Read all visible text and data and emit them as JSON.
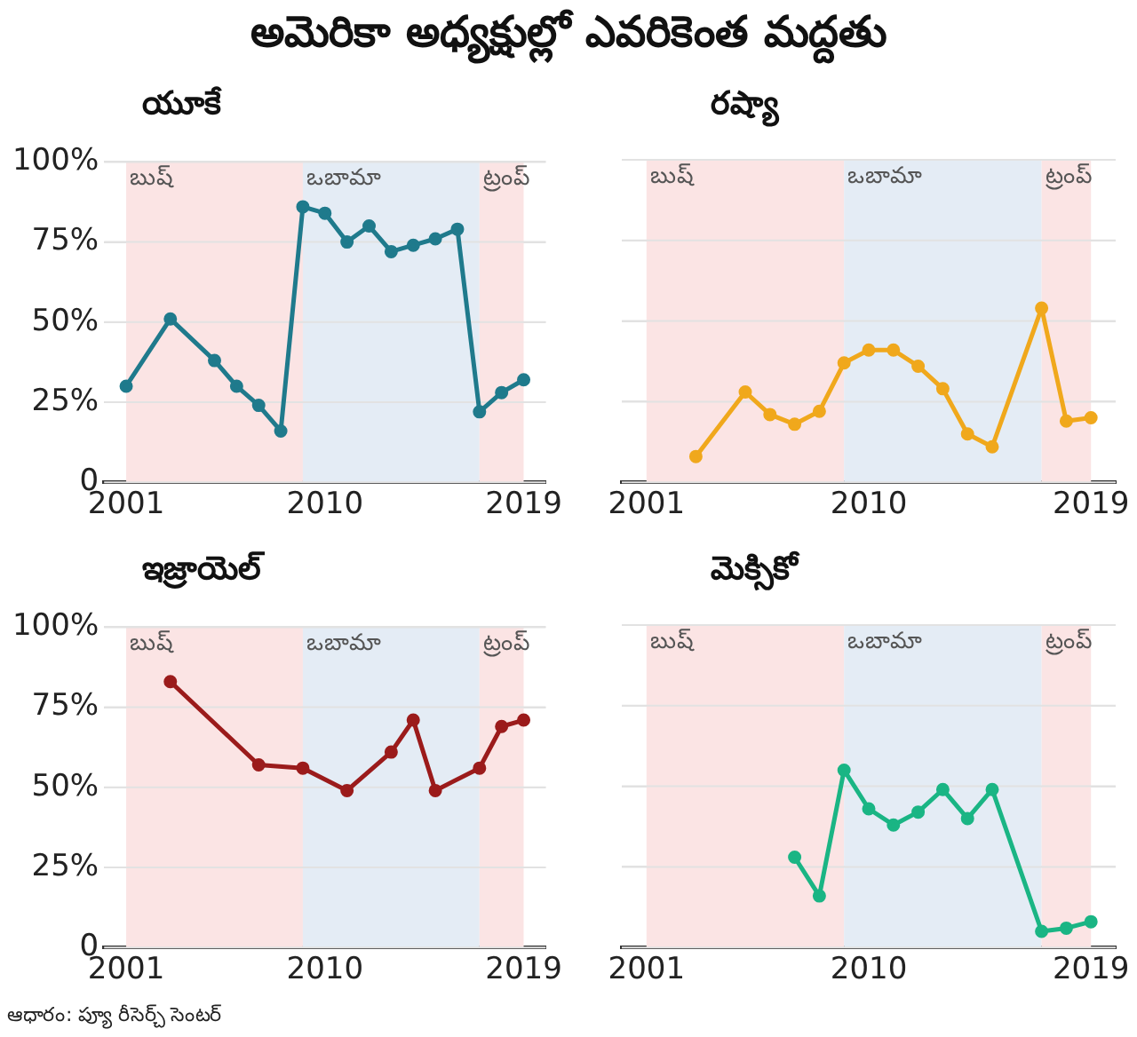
{
  "chart_data": [
    {
      "type": "line",
      "title": "అమెరికా అధ్యక్షుల్లో ఎవరికెంత మద్దతు",
      "subtitle": "యూకే",
      "x": [
        2001,
        2003,
        2005,
        2006,
        2007,
        2008,
        2009,
        2010,
        2011,
        2012,
        2013,
        2014,
        2015,
        2016,
        2017,
        2018,
        2019
      ],
      "series": [
        {
          "color": "#1f7a8c",
          "values": [
            30,
            51,
            38,
            30,
            24,
            16,
            86,
            84,
            75,
            80,
            72,
            74,
            76,
            79,
            22,
            28,
            32
          ]
        }
      ],
      "xlim": [
        2000,
        2020
      ],
      "xticks": [
        2001,
        2010,
        2019
      ],
      "ylim": [
        0,
        100
      ],
      "yticks": [
        0,
        {
          "value": 25,
          "label": "25%"
        },
        {
          "value": 50,
          "label": "50%"
        },
        {
          "value": 75,
          "label": "75%"
        },
        {
          "value": 100,
          "label": "100%"
        }
      ],
      "bands": [
        {
          "axis": "x",
          "from": 2001,
          "to": 2009,
          "label": "బుష్",
          "color": "#fbe4e4"
        },
        {
          "axis": "x",
          "from": 2009,
          "to": 2017,
          "label": "ఒబామా",
          "color": "#e4ecf5"
        },
        {
          "axis": "x",
          "from": 2017,
          "to": 2019,
          "label": "ట్రంప్",
          "color": "#fbe4e4"
        }
      ],
      "grid": "y",
      "marker": "circle",
      "legend": false
    },
    {
      "type": "line",
      "title": "రష్యా",
      "x": [
        2003,
        2005,
        2006,
        2007,
        2008,
        2009,
        2010,
        2011,
        2012,
        2013,
        2014,
        2015,
        2017,
        2018,
        2019
      ],
      "series": [
        {
          "color": "#f0a81c",
          "values": [
            8,
            28,
            21,
            18,
            22,
            37,
            41,
            41,
            36,
            29,
            15,
            11,
            54,
            19,
            20
          ]
        }
      ],
      "xlim": [
        2000,
        2020
      ],
      "xticks": [
        2001,
        2010,
        2019
      ],
      "ylim": [
        0,
        100
      ],
      "yticks": [
        0,
        25,
        50,
        75,
        100
      ],
      "tick_labels": "x",
      "bands": [
        {
          "axis": "x",
          "from": 2001,
          "to": 2009,
          "label": "బుష్",
          "color": "#fbe4e4"
        },
        {
          "axis": "x",
          "from": 2009,
          "to": 2017,
          "label": "ఒబామా",
          "color": "#e4ecf5"
        },
        {
          "axis": "x",
          "from": 2017,
          "to": 2019,
          "label": "ట్రంప్",
          "color": "#fbe4e4"
        }
      ],
      "grid": "y",
      "marker": "circle",
      "legend": false
    },
    {
      "type": "line",
      "title": "ఇజ్రాయెల్",
      "x": [
        2003,
        2007,
        2009,
        2011,
        2013,
        2014,
        2015,
        2017,
        2018,
        2019
      ],
      "series": [
        {
          "color": "#9b1b1b",
          "values": [
            83,
            57,
            56,
            49,
            61,
            71,
            49,
            56,
            69,
            71
          ]
        }
      ],
      "xlim": [
        2000,
        2020
      ],
      "xticks": [
        2001,
        2010,
        2019
      ],
      "ylim": [
        0,
        100
      ],
      "yticks": [
        0,
        {
          "value": 25,
          "label": "25%"
        },
        {
          "value": 50,
          "label": "50%"
        },
        {
          "value": 75,
          "label": "75%"
        },
        {
          "value": 100,
          "label": "100%"
        }
      ],
      "bands": [
        {
          "axis": "x",
          "from": 2001,
          "to": 2009,
          "label": "బుష్",
          "color": "#fbe4e4"
        },
        {
          "axis": "x",
          "from": 2009,
          "to": 2017,
          "label": "ఒబామా",
          "color": "#e4ecf5"
        },
        {
          "axis": "x",
          "from": 2017,
          "to": 2019,
          "label": "ట్రంప్",
          "color": "#fbe4e4"
        }
      ],
      "grid": "y",
      "marker": "circle",
      "legend": false
    },
    {
      "type": "line",
      "title": "మెక్సికో",
      "x": [
        2007,
        2008,
        2009,
        2010,
        2011,
        2012,
        2013,
        2014,
        2015,
        2017,
        2018,
        2019
      ],
      "series": [
        {
          "color": "#1ab584",
          "values": [
            28,
            16,
            55,
            43,
            38,
            42,
            49,
            40,
            49,
            5,
            6,
            8
          ]
        }
      ],
      "xlim": [
        2000,
        2020
      ],
      "xticks": [
        2001,
        2010,
        2019
      ],
      "ylim": [
        0,
        100
      ],
      "yticks": [
        0,
        25,
        50,
        75,
        100
      ],
      "tick_labels": "x",
      "bands": [
        {
          "axis": "x",
          "from": 2001,
          "to": 2009,
          "label": "బుష్",
          "color": "#fbe4e4"
        },
        {
          "axis": "x",
          "from": 2009,
          "to": 2017,
          "label": "ఒబామా",
          "color": "#e4ecf5"
        },
        {
          "axis": "x",
          "from": 2017,
          "to": 2019,
          "label": "ట్రంప్",
          "color": "#fbe4e4"
        }
      ],
      "grid": "y",
      "marker": "circle",
      "legend": false,
      "annotations": [
        "ఆధారం: ప్యూ రీసెర్చ్ సెంటర్"
      ]
    }
  ]
}
